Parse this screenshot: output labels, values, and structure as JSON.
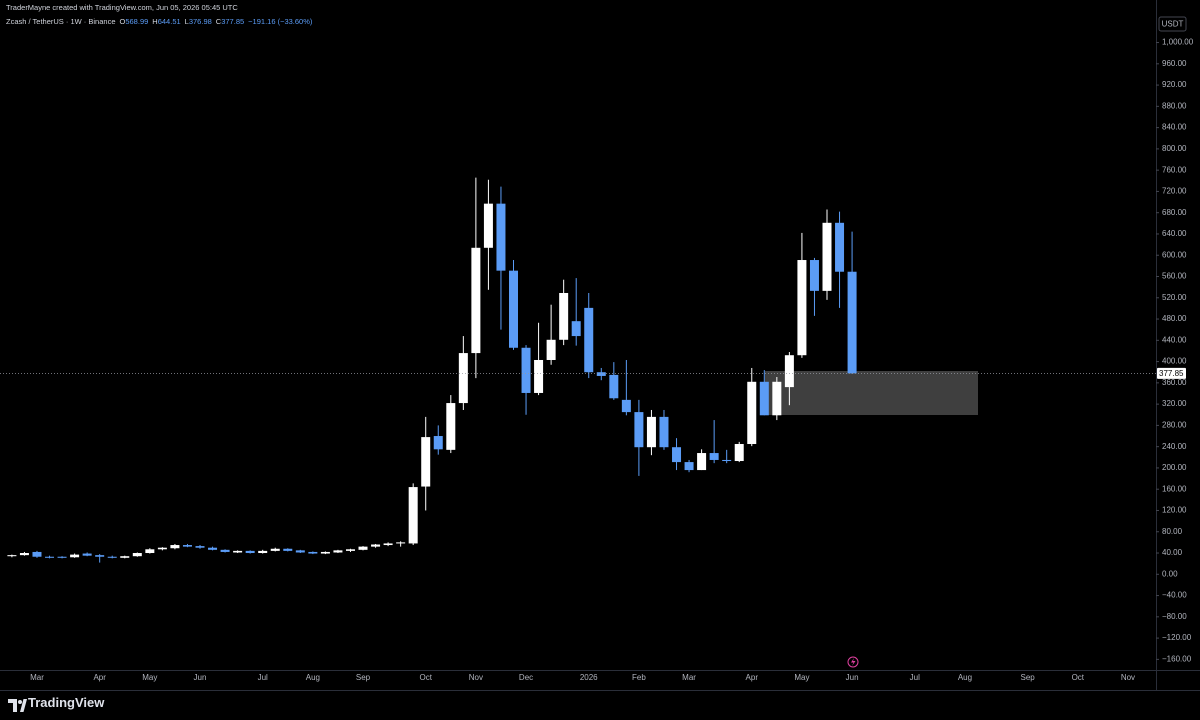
{
  "header": {
    "credit": "TraderMayne created with TradingView.com, Jun 05, 2026 05:45 UTC",
    "symbol": "Zcash / TetherUS · 1W · Binance",
    "ohlc_prefixes": [
      "O",
      "H",
      "L",
      "C"
    ],
    "change": "−191.16 (−33.60%)"
  },
  "footer": {
    "brand": "TradingView"
  },
  "chart_data": {
    "type": "candlestick",
    "currency": "USDT",
    "up_color": "#ffffff",
    "down_color": "#5b9cf6",
    "ylim": [
      -180,
      1080
    ],
    "yticks": [
      {
        "value": 1000,
        "label": "1,000.00"
      },
      {
        "value": 960,
        "label": "960.00"
      },
      {
        "value": 920,
        "label": "920.00"
      },
      {
        "value": 880,
        "label": "880.00"
      },
      {
        "value": 840,
        "label": "840.00"
      },
      {
        "value": 800,
        "label": "800.00"
      },
      {
        "value": 760,
        "label": "760.00"
      },
      {
        "value": 720,
        "label": "720.00"
      },
      {
        "value": 680,
        "label": "680.00"
      },
      {
        "value": 640,
        "label": "640.00"
      },
      {
        "value": 600,
        "label": "600.00"
      },
      {
        "value": 560,
        "label": "560.00"
      },
      {
        "value": 520,
        "label": "520.00"
      },
      {
        "value": 480,
        "label": "480.00"
      },
      {
        "value": 440,
        "label": "440.00"
      },
      {
        "value": 400,
        "label": "400.00"
      },
      {
        "value": 360,
        "label": "360.00"
      },
      {
        "value": 320,
        "label": "320.00"
      },
      {
        "value": 280,
        "label": "280.00"
      },
      {
        "value": 240,
        "label": "240.00"
      },
      {
        "value": 200,
        "label": "200.00"
      },
      {
        "value": 160,
        "label": "160.00"
      },
      {
        "value": 120,
        "label": "120.00"
      },
      {
        "value": 80,
        "label": "80.00"
      },
      {
        "value": 40,
        "label": "40.00"
      },
      {
        "value": 0,
        "label": "0.00"
      },
      {
        "value": -40,
        "label": "−40.00"
      },
      {
        "value": -80,
        "label": "−80.00"
      },
      {
        "value": -120,
        "label": "−120.00"
      },
      {
        "value": -160,
        "label": "−160.00"
      }
    ],
    "categories": [
      null,
      null,
      "Mar",
      null,
      null,
      null,
      null,
      "Apr",
      null,
      null,
      null,
      "May",
      null,
      null,
      null,
      "Jun",
      null,
      null,
      null,
      null,
      "Jul",
      null,
      null,
      null,
      "Aug",
      null,
      null,
      null,
      "Sep",
      null,
      null,
      null,
      null,
      "Oct",
      null,
      null,
      null,
      "Nov",
      null,
      null,
      null,
      "Dec",
      null,
      null,
      null,
      null,
      "2026",
      null,
      null,
      null,
      "Feb",
      null,
      null,
      null,
      "Mar",
      null,
      null,
      null,
      null,
      "Apr",
      null,
      null,
      null,
      "May",
      null,
      null,
      null,
      "Jun",
      null,
      null,
      null,
      null,
      "Jul",
      null,
      null,
      null,
      "Aug",
      null,
      null,
      null,
      null,
      "Sep",
      null,
      null,
      null,
      "Oct",
      null,
      null,
      null,
      "Nov",
      null
    ],
    "open": [
      34,
      36,
      42,
      33,
      33,
      32,
      39,
      36,
      33,
      31,
      34,
      40,
      47,
      49,
      55,
      53,
      50,
      46,
      41,
      44,
      40,
      44,
      48,
      45,
      42,
      39,
      41,
      44,
      46,
      52,
      55,
      58,
      58,
      165,
      260,
      234,
      322,
      416,
      614,
      697,
      571,
      426,
      341,
      403,
      441,
      476,
      501,
      380,
      375,
      328,
      305,
      239,
      296,
      239,
      211,
      196,
      228,
      215,
      213,
      245,
      362,
      299,
      352,
      412,
      591,
      533,
      661,
      568.99,
      null,
      null,
      null,
      null,
      null,
      null,
      null,
      null,
      null,
      null,
      null,
      null,
      null,
      null,
      null,
      null,
      null,
      null,
      null,
      null,
      null,
      null,
      null
    ],
    "high": [
      37,
      42,
      44,
      35,
      34,
      39,
      41,
      38,
      35,
      35,
      41,
      49,
      51,
      57,
      57,
      55,
      52,
      47,
      45,
      45,
      46,
      50,
      49,
      46,
      43,
      43,
      46,
      48,
      53,
      57,
      60,
      62,
      171,
      296,
      280,
      337,
      448,
      746,
      742,
      729,
      591,
      431,
      473,
      507,
      554,
      557,
      529,
      388,
      399,
      403,
      328,
      309,
      309,
      256,
      215,
      235,
      290,
      234,
      249,
      388,
      384,
      371,
      418,
      642,
      595,
      686,
      682,
      644.51,
      null,
      null,
      null,
      null,
      null,
      null,
      null,
      null,
      null,
      null,
      null,
      null,
      null,
      null,
      null,
      null,
      null,
      null,
      null,
      null,
      null,
      null,
      null
    ],
    "low": [
      32,
      35,
      31,
      30,
      30,
      31,
      34,
      22,
      30,
      30,
      33,
      39,
      45,
      47,
      51,
      48,
      45,
      41,
      40,
      39,
      39,
      43,
      43,
      40,
      38,
      38,
      40,
      42,
      45,
      50,
      53,
      52,
      55,
      120,
      225,
      228,
      309,
      369,
      535,
      460,
      422,
      300,
      337,
      394,
      431,
      430,
      369,
      365,
      328,
      299,
      185,
      224,
      234,
      196,
      192,
      196,
      209,
      209,
      211,
      241,
      299,
      290,
      318,
      407,
      486,
      516,
      501,
      376.98,
      null,
      null,
      null,
      null,
      null,
      null,
      null,
      null,
      null,
      null,
      null,
      null,
      null,
      null,
      null,
      null,
      null,
      null,
      null,
      null,
      null,
      null,
      null
    ],
    "close": [
      36,
      40,
      33,
      31,
      31,
      37,
      35,
      33,
      31,
      34,
      40,
      47,
      50,
      55,
      52,
      50,
      46,
      42,
      44,
      40,
      44,
      48,
      44,
      41,
      39,
      42,
      45,
      47,
      52,
      56,
      58,
      60,
      164,
      258,
      235,
      322,
      416,
      614,
      697,
      571,
      426,
      341,
      403,
      441,
      529,
      448,
      380,
      373,
      331,
      305,
      239,
      296,
      239,
      211,
      196,
      228,
      215,
      213,
      245,
      362,
      299,
      362,
      412,
      591,
      533,
      661,
      569,
      377.85,
      null,
      null,
      null,
      null,
      null,
      null,
      null,
      null,
      null,
      null,
      null,
      null,
      null,
      null,
      null,
      null,
      null,
      null,
      null,
      null,
      null,
      null,
      null
    ]
  }
}
